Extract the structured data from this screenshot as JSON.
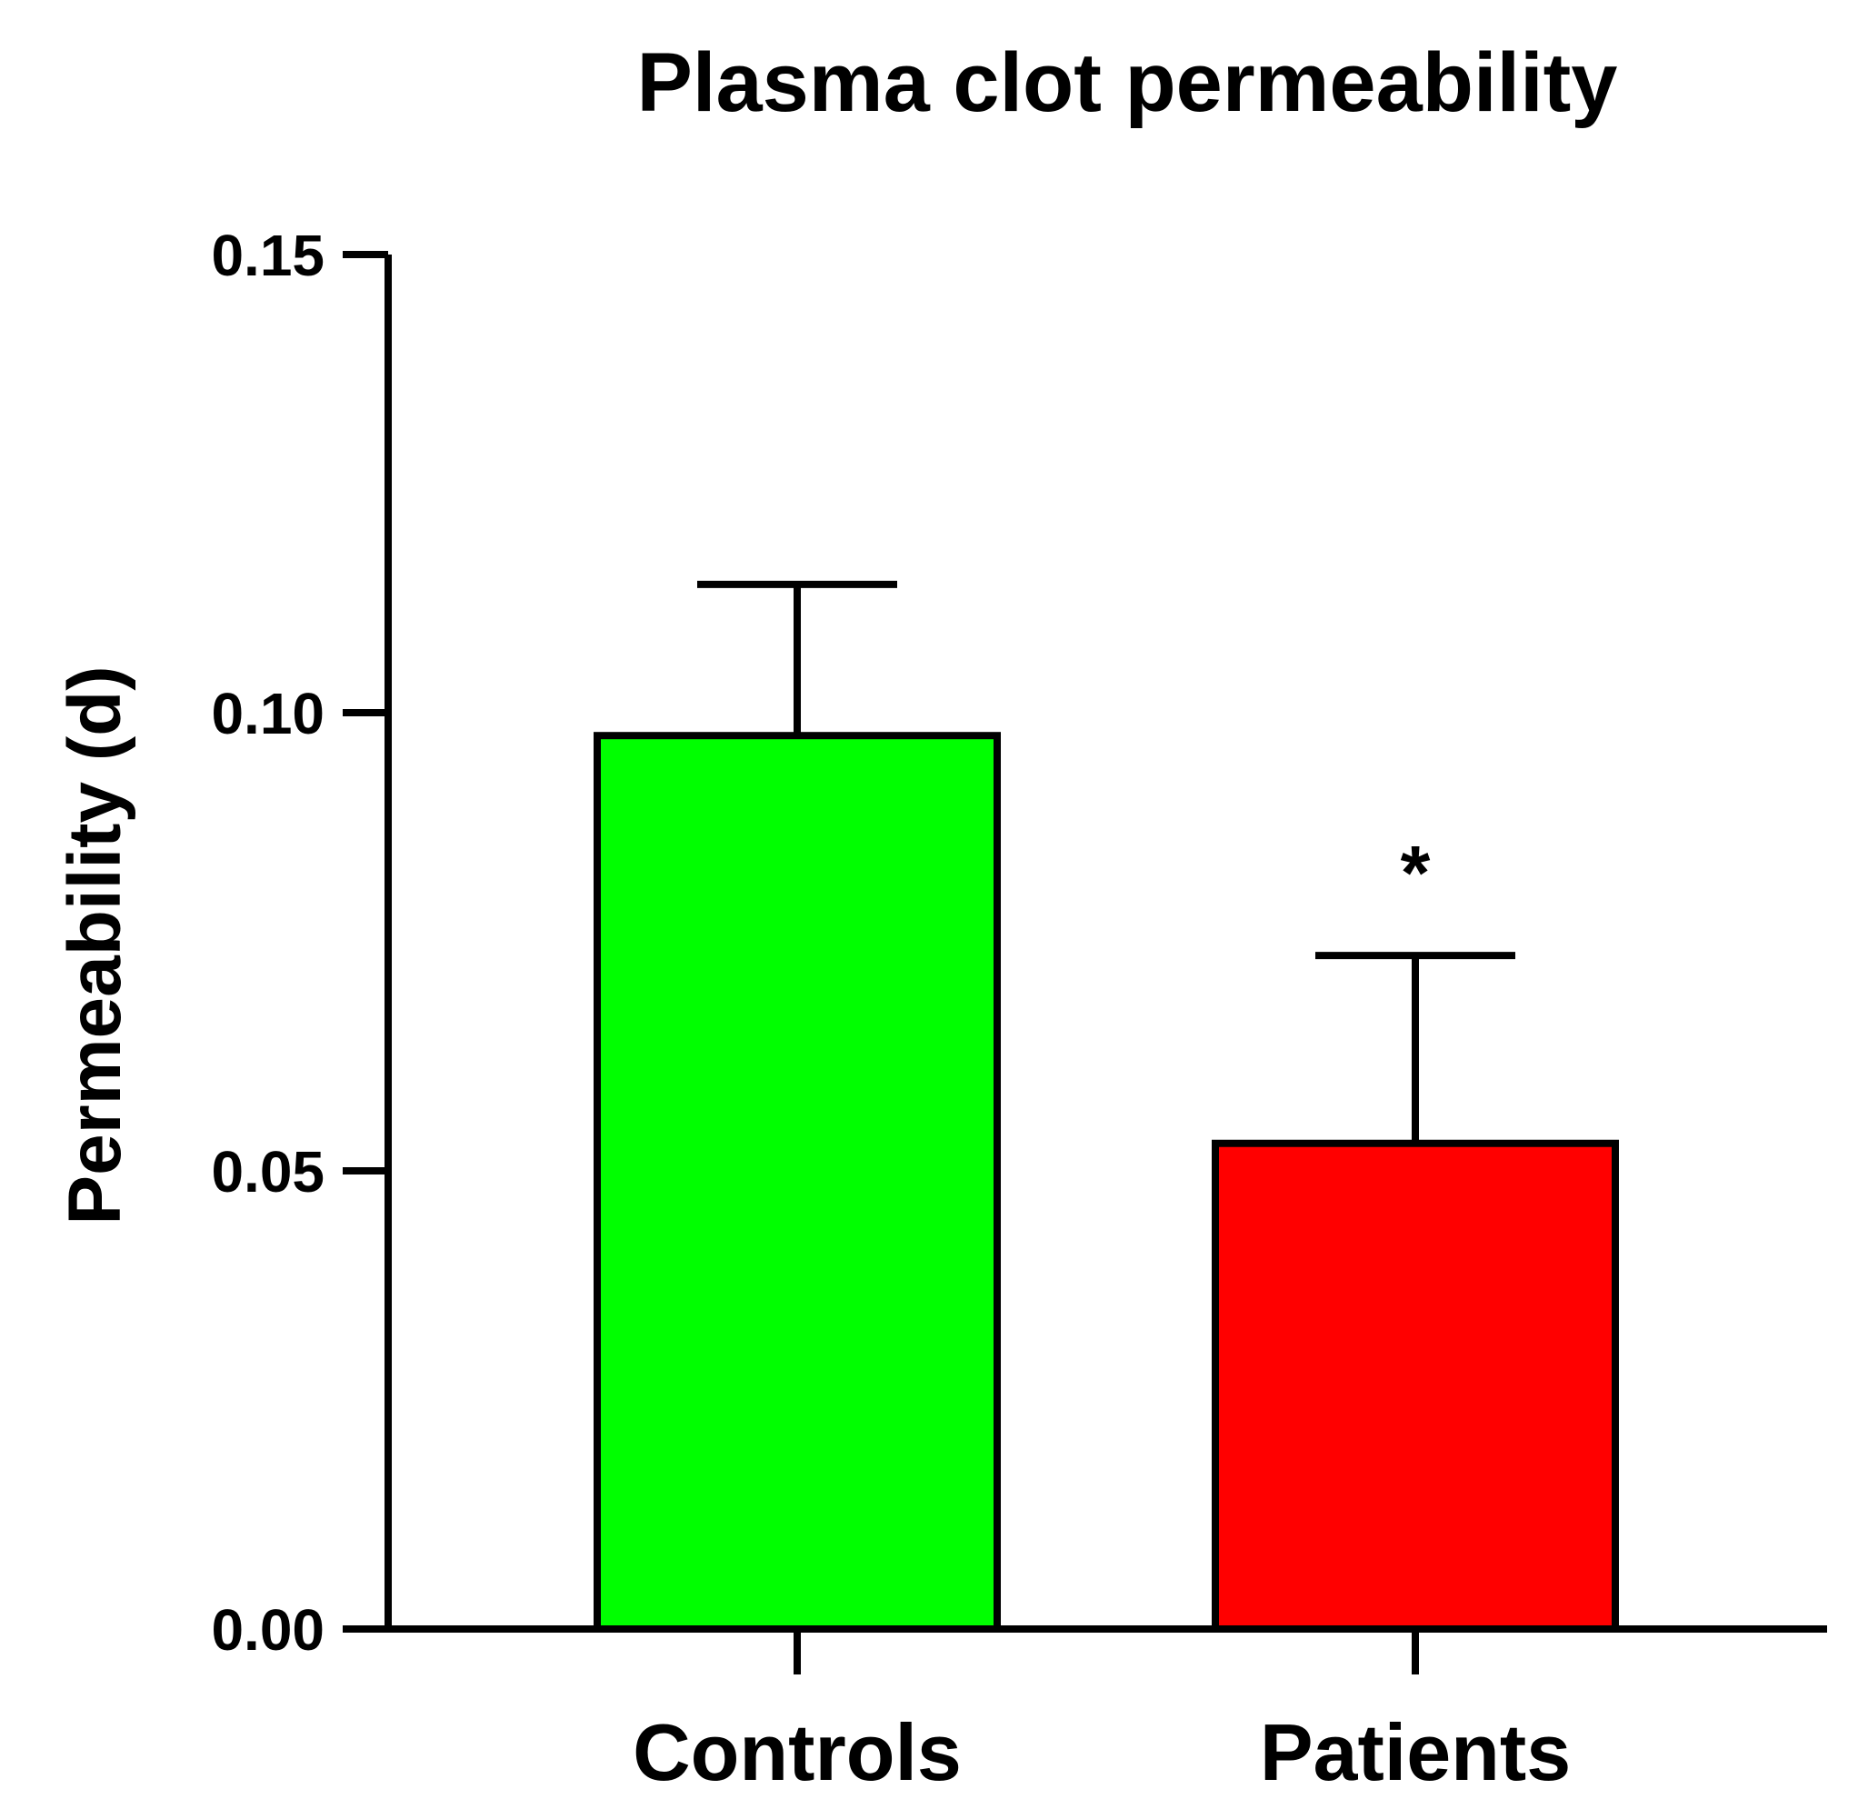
{
  "chart_data": {
    "type": "bar",
    "title": "Plasma clot permeability",
    "xlabel": "",
    "ylabel": "Permeability (d)",
    "ylim": [
      0,
      0.15
    ],
    "yticks": [
      0.0,
      0.05,
      0.1,
      0.15
    ],
    "ytick_labels": [
      "0.00",
      "0.05",
      "0.10",
      "0.15"
    ],
    "categories": [
      "Controls",
      "Patients"
    ],
    "values": [
      0.0975,
      0.053
    ],
    "error_upper": [
      0.0165,
      0.0205
    ],
    "colors": [
      "#00ff00",
      "#ff0000"
    ],
    "annotations": [
      {
        "category": "Patients",
        "text": "*"
      }
    ],
    "grid": false,
    "legend": "none"
  }
}
